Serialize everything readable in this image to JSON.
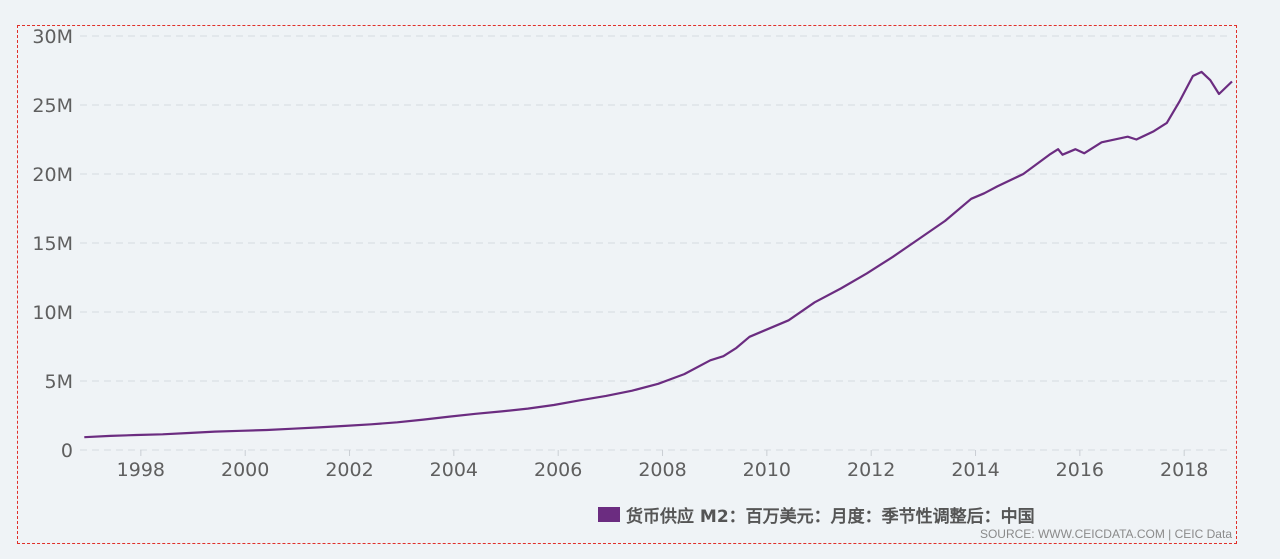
{
  "chart_data": {
    "type": "line",
    "title": "",
    "xlabel": "",
    "ylabel": "",
    "ylim": [
      0,
      30000000
    ],
    "xlim": [
      "1996-11",
      "2018-12"
    ],
    "grid": true,
    "legend_position": "bottom-center",
    "y_ticks": [
      {
        "value": 0,
        "label": "0"
      },
      {
        "value": 5000000,
        "label": "5M"
      },
      {
        "value": 10000000,
        "label": "10M"
      },
      {
        "value": 15000000,
        "label": "15M"
      },
      {
        "value": 20000000,
        "label": "20M"
      },
      {
        "value": 25000000,
        "label": "25M"
      },
      {
        "value": 30000000,
        "label": "30M"
      }
    ],
    "x_ticks": [
      "1998",
      "2000",
      "2002",
      "2004",
      "2006",
      "2008",
      "2010",
      "2012",
      "2014",
      "2016",
      "2018"
    ],
    "series": [
      {
        "name": "货币供应 M2：百万美元：月度：季节性调整后：中国",
        "color": "#6b2c80",
        "points": [
          [
            "1996-12",
            930000
          ],
          [
            "1997-06",
            1020000
          ],
          [
            "1997-12",
            1090000
          ],
          [
            "1998-06",
            1140000
          ],
          [
            "1998-12",
            1230000
          ],
          [
            "1999-06",
            1330000
          ],
          [
            "1999-12",
            1390000
          ],
          [
            "2000-06",
            1450000
          ],
          [
            "2000-12",
            1540000
          ],
          [
            "2001-06",
            1640000
          ],
          [
            "2001-12",
            1750000
          ],
          [
            "2002-06",
            1860000
          ],
          [
            "2002-12",
            2010000
          ],
          [
            "2003-06",
            2200000
          ],
          [
            "2003-12",
            2420000
          ],
          [
            "2004-06",
            2620000
          ],
          [
            "2004-12",
            2800000
          ],
          [
            "2005-06",
            3000000
          ],
          [
            "2005-12",
            3260000
          ],
          [
            "2006-06",
            3600000
          ],
          [
            "2006-12",
            3920000
          ],
          [
            "2007-06",
            4300000
          ],
          [
            "2007-12",
            4800000
          ],
          [
            "2008-06",
            5500000
          ],
          [
            "2008-12",
            6500000
          ],
          [
            "2009-03",
            6800000
          ],
          [
            "2009-06",
            7400000
          ],
          [
            "2009-09",
            8200000
          ],
          [
            "2009-12",
            8600000
          ],
          [
            "2010-06",
            9400000
          ],
          [
            "2010-12",
            10700000
          ],
          [
            "2011-06",
            11700000
          ],
          [
            "2011-12",
            12800000
          ],
          [
            "2012-03",
            13400000
          ],
          [
            "2012-06",
            14000000
          ],
          [
            "2012-12",
            15300000
          ],
          [
            "2013-06",
            16600000
          ],
          [
            "2013-12",
            18200000
          ],
          [
            "2014-03",
            18600000
          ],
          [
            "2014-06",
            19100000
          ],
          [
            "2014-12",
            20000000
          ],
          [
            "2015-06",
            21400000
          ],
          [
            "2015-08",
            21800000
          ],
          [
            "2015-09",
            21400000
          ],
          [
            "2015-12",
            21800000
          ],
          [
            "2016-02",
            21500000
          ],
          [
            "2016-06",
            22300000
          ],
          [
            "2016-12",
            22700000
          ],
          [
            "2017-02",
            22500000
          ],
          [
            "2017-06",
            23100000
          ],
          [
            "2017-09",
            23700000
          ],
          [
            "2017-12",
            25300000
          ],
          [
            "2018-03",
            27100000
          ],
          [
            "2018-05",
            27400000
          ],
          [
            "2018-07",
            26800000
          ],
          [
            "2018-09",
            25800000
          ],
          [
            "2018-12",
            26700000
          ]
        ]
      }
    ]
  },
  "source_text": "SOURCE: WWW.CEICDATA.COM | CEIC Data"
}
